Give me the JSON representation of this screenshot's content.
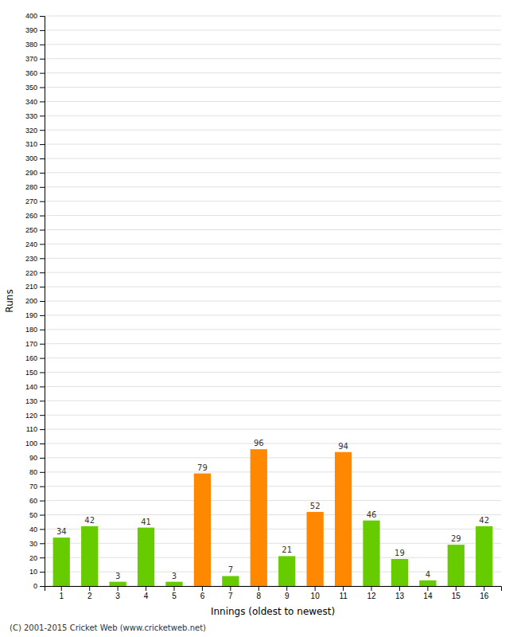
{
  "chart_data": {
    "type": "bar",
    "x_label": "Innings (oldest to newest)",
    "y_label": "Runs",
    "categories": [
      1,
      2,
      3,
      4,
      5,
      6,
      7,
      8,
      9,
      10,
      11,
      12,
      13,
      14,
      15,
      16
    ],
    "values": [
      34,
      42,
      3,
      41,
      3,
      79,
      7,
      96,
      21,
      52,
      94,
      46,
      19,
      4,
      29,
      42
    ],
    "colors": [
      "#66cc00",
      "#66cc00",
      "#66cc00",
      "#66cc00",
      "#66cc00",
      "#ff8800",
      "#66cc00",
      "#ff8800",
      "#66cc00",
      "#ff8800",
      "#ff8800",
      "#66cc00",
      "#66cc00",
      "#66cc00",
      "#66cc00",
      "#66cc00"
    ],
    "ylim": [
      0,
      400
    ],
    "yticks": [
      0,
      10,
      20,
      30,
      40,
      50,
      60,
      70,
      80,
      90,
      100,
      110,
      120,
      130,
      140,
      150,
      160,
      170,
      180,
      190,
      200,
      210,
      220,
      230,
      240,
      250,
      260,
      270,
      280,
      290,
      300,
      310,
      320,
      330,
      340,
      350,
      360,
      370,
      380,
      390,
      400
    ],
    "grid": true,
    "data_labels": true,
    "annotations": [
      "(C) 2001-2015 Cricket Web (www.cricketweb.net)"
    ]
  }
}
